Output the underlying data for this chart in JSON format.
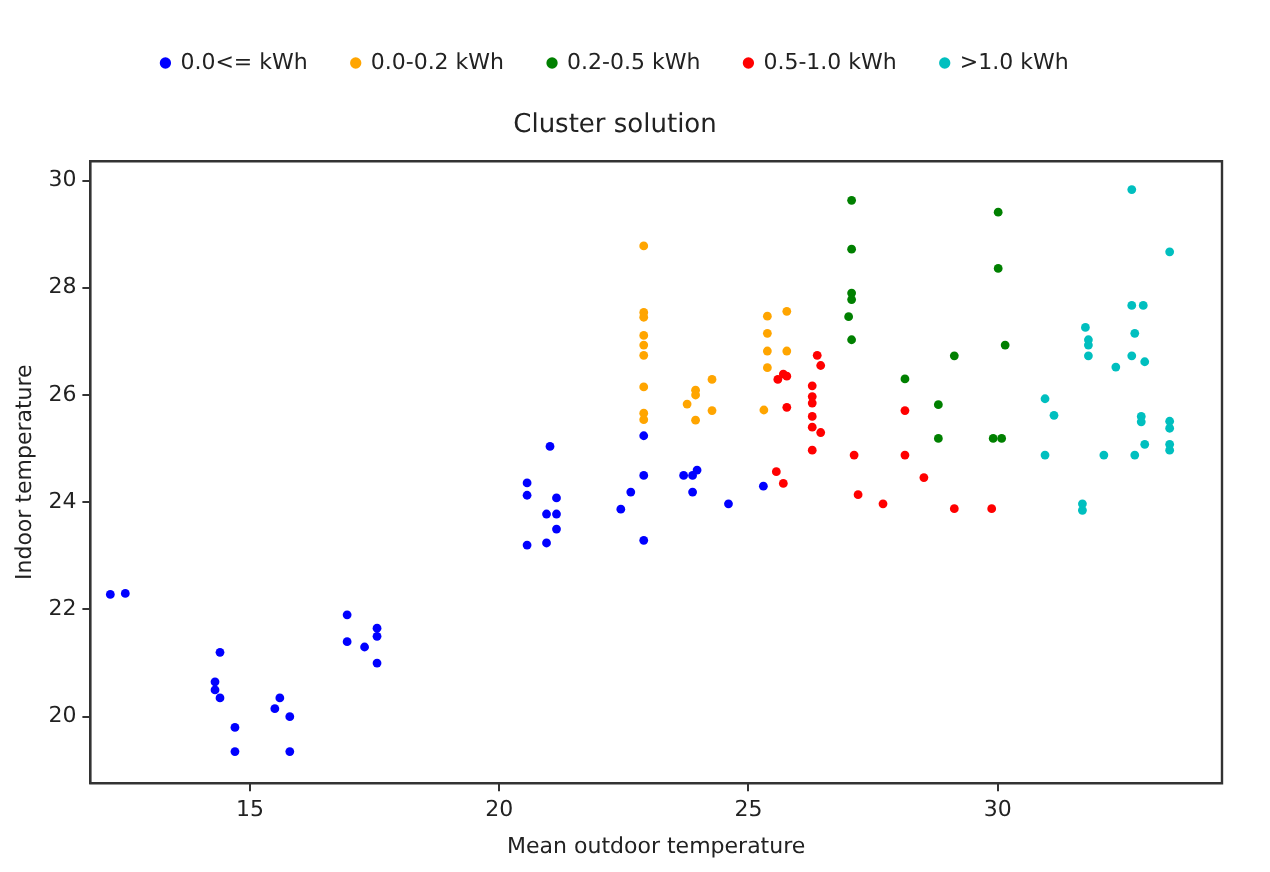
{
  "chart_data": {
    "type": "scatter",
    "title": "Cluster solution",
    "xlabel": "Mean outdoor temperature",
    "ylabel": "Indoor temperature",
    "xlim": [
      11.8,
      34.5
    ],
    "ylim": [
      18.76,
      30.36
    ],
    "xticks": [
      15,
      20,
      25,
      30
    ],
    "yticks": [
      20,
      22,
      24,
      26,
      28,
      30
    ],
    "grid": false,
    "legend": "top",
    "marker": "circle",
    "series": [
      {
        "name": "0.0<= kWh",
        "color": "#0000ff",
        "x": [
          12.2,
          12.5,
          14.4,
          14.3,
          14.3,
          14.4,
          14.7,
          14.7,
          15.6,
          15.5,
          15.8,
          15.8,
          16.95,
          16.95,
          17.3,
          17.55,
          17.55,
          17.55,
          21.02,
          20.56,
          20.56,
          21.15,
          20.95,
          21.15,
          21.15,
          20.56,
          20.95,
          22.9,
          22.9,
          22.64,
          22.44,
          22.9,
          23.7,
          23.88,
          23.97,
          23.88,
          24.6,
          25.3
        ],
        "values": [
          22.28,
          22.3,
          21.2,
          20.65,
          20.5,
          20.35,
          19.8,
          19.35,
          20.35,
          20.15,
          20.0,
          19.35,
          21.9,
          21.4,
          21.3,
          21.65,
          21.5,
          21.0,
          25.04,
          24.36,
          24.13,
          24.08,
          23.78,
          23.78,
          23.5,
          23.2,
          23.24,
          25.24,
          24.5,
          24.19,
          23.87,
          23.29,
          24.5,
          24.5,
          24.6,
          24.19,
          23.97,
          24.3
        ]
      },
      {
        "name": "0.0-0.2 kWh",
        "color": "#ffa500",
        "x": [
          22.9,
          22.9,
          22.9,
          22.9,
          22.9,
          22.9,
          22.9,
          22.9,
          22.9,
          23.77,
          23.94,
          23.94,
          24.27,
          23.94,
          24.27,
          25.38,
          25.77,
          25.38,
          25.38,
          25.77,
          25.38,
          25.31
        ],
        "values": [
          28.78,
          27.54,
          27.45,
          27.11,
          26.93,
          26.74,
          26.15,
          25.66,
          25.54,
          25.83,
          26.09,
          26.0,
          26.29,
          25.53,
          25.71,
          27.47,
          27.56,
          27.15,
          26.82,
          26.82,
          26.51,
          25.72
        ]
      },
      {
        "name": "0.2-0.5 kWh",
        "color": "#008000",
        "x": [
          27.07,
          27.07,
          27.07,
          27.07,
          27.01,
          27.07,
          30.01,
          30.01,
          30.15,
          29.13,
          28.14,
          28.81,
          28.81,
          29.91,
          30.08
        ],
        "values": [
          29.63,
          28.72,
          27.9,
          27.78,
          27.46,
          27.03,
          29.41,
          28.36,
          26.93,
          26.73,
          26.3,
          25.82,
          25.19,
          25.19,
          25.19
        ]
      },
      {
        "name": "0.5-1.0 kWh",
        "color": "#ff0000",
        "x": [
          26.38,
          26.45,
          25.7,
          25.59,
          25.77,
          26.28,
          26.28,
          26.28,
          25.77,
          26.28,
          26.28,
          26.45,
          26.28,
          25.56,
          25.7,
          27.12,
          27.2,
          27.7,
          28.14,
          28.14,
          28.52,
          29.13,
          29.88
        ],
        "values": [
          26.74,
          26.55,
          26.39,
          26.29,
          26.35,
          26.17,
          25.97,
          25.85,
          25.77,
          25.6,
          25.4,
          25.3,
          24.97,
          24.57,
          24.35,
          24.88,
          24.14,
          23.97,
          25.71,
          24.88,
          24.46,
          23.88,
          23.88
        ]
      },
      {
        "name": ">1.0 kWh",
        "color": "#00bfbf",
        "x": [
          32.69,
          33.45,
          32.69,
          32.92,
          31.76,
          31.82,
          31.82,
          31.82,
          32.75,
          32.69,
          32.37,
          32.95,
          30.95,
          31.13,
          30.95,
          32.13,
          32.75,
          32.95,
          32.88,
          32.88,
          33.45,
          33.45,
          33.45,
          33.45,
          31.7,
          31.7
        ],
        "values": [
          29.83,
          28.67,
          27.67,
          27.67,
          27.26,
          27.03,
          26.93,
          26.73,
          27.15,
          26.73,
          26.52,
          26.62,
          25.93,
          25.62,
          24.88,
          24.88,
          24.88,
          25.08,
          25.6,
          25.5,
          25.51,
          25.38,
          25.08,
          24.97,
          23.97,
          23.85
        ]
      }
    ]
  }
}
